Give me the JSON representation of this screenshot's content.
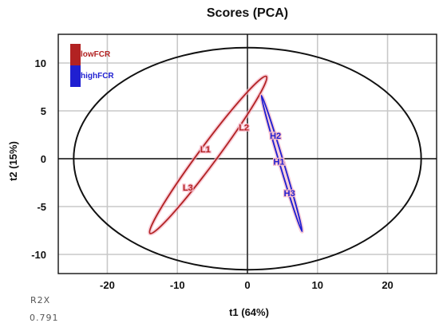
{
  "chart_data": {
    "type": "scatter",
    "title": "Scores (PCA)",
    "xlabel": "t1 (64%)",
    "ylabel": "t2 (15%)",
    "xlim": [
      -27,
      27
    ],
    "ylim": [
      -12,
      13
    ],
    "xticks": [
      -20,
      -10,
      0,
      10,
      20
    ],
    "yticks": [
      -10,
      -5,
      0,
      5,
      10
    ],
    "grid": true,
    "legend_position": "top-left",
    "series": [
      {
        "name": "lowFCR",
        "color": "#b22222",
        "points": [
          {
            "label": "L1",
            "x": -6,
            "y": 1
          },
          {
            "label": "L2",
            "x": -0.5,
            "y": 3.3
          },
          {
            "label": "L3",
            "x": -8.5,
            "y": -3
          }
        ],
        "ellipse": {
          "cx": -5.6,
          "cy": 0.4,
          "major_endpoints": [
            [
              2.7,
              8.6
            ],
            [
              -13.9,
              -7.8
            ]
          ],
          "minor_half_width": 1.3
        }
      },
      {
        "name": "highFCR",
        "color": "#1f1fd1",
        "points": [
          {
            "label": "H1",
            "x": 4.5,
            "y": -0.3
          },
          {
            "label": "H2",
            "x": 4,
            "y": 2.4
          },
          {
            "label": "H3",
            "x": 6,
            "y": -3.6
          }
        ],
        "ellipse": {
          "cx": 4.9,
          "cy": -0.5,
          "major_endpoints": [
            [
              2.0,
              6.6
            ],
            [
              7.8,
              -7.6
            ]
          ],
          "minor_half_width": 0.3
        }
      }
    ],
    "hotelling_ellipse": {
      "cx": 0,
      "cy": 0,
      "rx": 24.8,
      "ry": 11.6,
      "color": "#111111"
    },
    "footer": {
      "label": "R2X",
      "value": "0.791"
    }
  }
}
